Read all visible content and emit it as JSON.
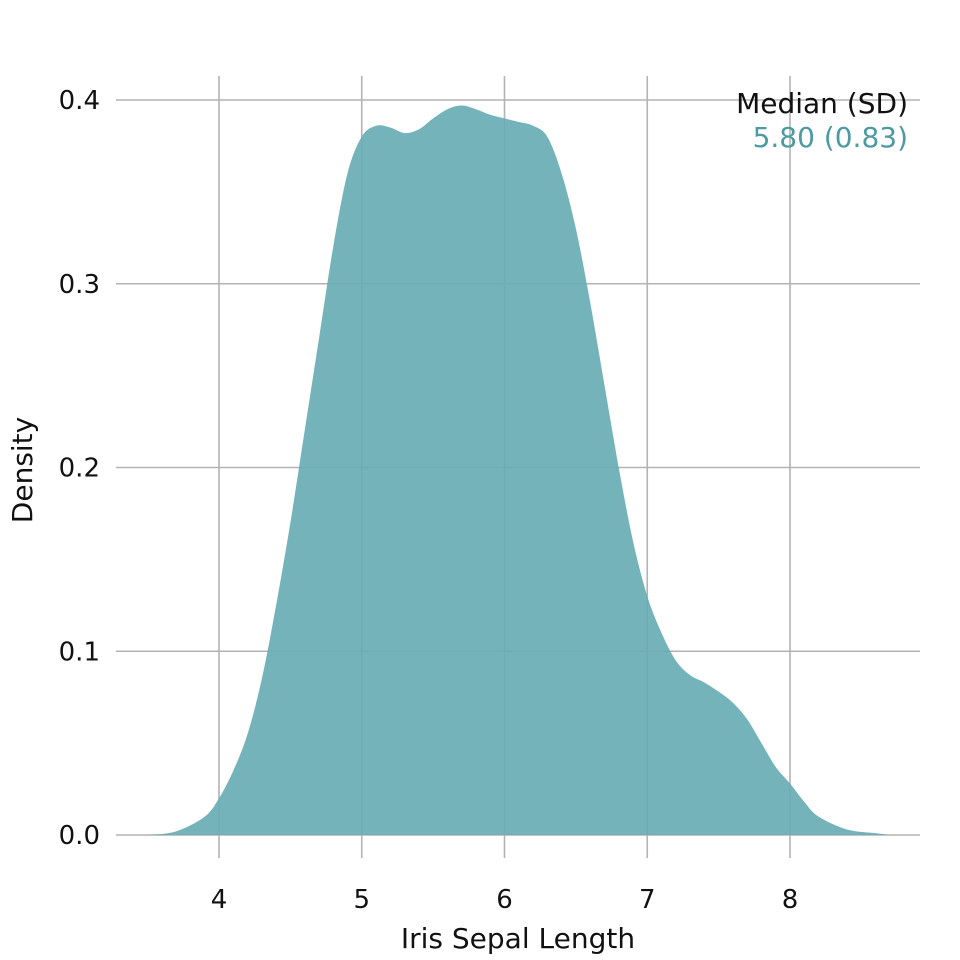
{
  "chart_data": {
    "type": "area",
    "xlabel": "Iris Sepal Length",
    "ylabel": "Density",
    "xlim": [
      3.3,
      8.9
    ],
    "ylim": [
      0,
      0.4
    ],
    "x_ticks": [
      4,
      5,
      6,
      7,
      8
    ],
    "y_ticks": [
      0.0,
      0.1,
      0.2,
      0.3,
      0.4
    ],
    "y_tick_labels": [
      "0.0",
      "0.1",
      "0.2",
      "0.3",
      "0.4"
    ],
    "grid": true,
    "series": [
      {
        "fill_color": "#69adb5",
        "x": [
          3.5,
          3.7,
          3.9,
          4.0,
          4.1,
          4.2,
          4.3,
          4.4,
          4.5,
          4.6,
          4.7,
          4.8,
          4.9,
          5.0,
          5.1,
          5.2,
          5.3,
          5.4,
          5.5,
          5.6,
          5.7,
          5.8,
          5.9,
          6.0,
          6.1,
          6.2,
          6.3,
          6.4,
          6.5,
          6.6,
          6.7,
          6.8,
          6.9,
          7.0,
          7.1,
          7.2,
          7.3,
          7.4,
          7.5,
          7.6,
          7.7,
          7.8,
          7.9,
          8.0,
          8.1,
          8.2,
          8.4,
          8.6,
          8.7
        ],
        "y": [
          0.0,
          0.002,
          0.01,
          0.02,
          0.035,
          0.055,
          0.085,
          0.125,
          0.17,
          0.22,
          0.27,
          0.32,
          0.36,
          0.38,
          0.386,
          0.385,
          0.382,
          0.384,
          0.39,
          0.395,
          0.397,
          0.395,
          0.392,
          0.39,
          0.388,
          0.386,
          0.38,
          0.36,
          0.33,
          0.29,
          0.245,
          0.2,
          0.16,
          0.13,
          0.11,
          0.095,
          0.087,
          0.083,
          0.078,
          0.072,
          0.063,
          0.05,
          0.037,
          0.028,
          0.018,
          0.01,
          0.003,
          0.001,
          0.0
        ]
      }
    ],
    "annotation": {
      "header": "Median (SD)",
      "value": "5.80 (0.83)",
      "value_color": "#4d9aa3",
      "position": "top-right"
    }
  }
}
